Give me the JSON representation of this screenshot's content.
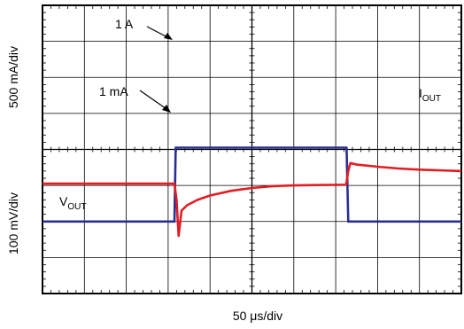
{
  "chart_data": {
    "type": "line",
    "title": "",
    "xlabel": "50 μs/div",
    "ylabels": {
      "top": "500 mA/div",
      "bottom": "100 mV/div"
    },
    "divisions": {
      "x": 10,
      "y": 8
    },
    "grid": true,
    "series": [
      {
        "name": "IOUT",
        "name_main": "I",
        "name_sub": "OUT",
        "color": "#2b2e8f",
        "unit": "div",
        "points": [
          [
            0,
            2.0
          ],
          [
            3.15,
            2.0
          ],
          [
            3.18,
            4.05
          ],
          [
            7.26,
            4.05
          ],
          [
            7.3,
            2.0
          ],
          [
            10,
            2.0
          ]
        ]
      },
      {
        "name": "VOUT",
        "name_main": "V",
        "name_sub": "OUT",
        "color": "#e11d24",
        "unit": "div",
        "points": [
          [
            0,
            3.05
          ],
          [
            3.15,
            3.05
          ],
          [
            3.2,
            2.6
          ],
          [
            3.25,
            1.6
          ],
          [
            3.32,
            2.3
          ],
          [
            3.45,
            2.45
          ],
          [
            3.7,
            2.6
          ],
          [
            4.0,
            2.72
          ],
          [
            4.5,
            2.85
          ],
          [
            5.0,
            2.93
          ],
          [
            5.5,
            2.98
          ],
          [
            6.0,
            3.0
          ],
          [
            6.5,
            3.01
          ],
          [
            7.25,
            3.02
          ],
          [
            7.3,
            3.4
          ],
          [
            7.35,
            3.62
          ],
          [
            7.5,
            3.58
          ],
          [
            8.0,
            3.52
          ],
          [
            8.5,
            3.47
          ],
          [
            9.0,
            3.44
          ],
          [
            10,
            3.4
          ]
        ]
      }
    ],
    "annotations": [
      {
        "text": "1 A"
      },
      {
        "text": "1 mA"
      }
    ]
  }
}
